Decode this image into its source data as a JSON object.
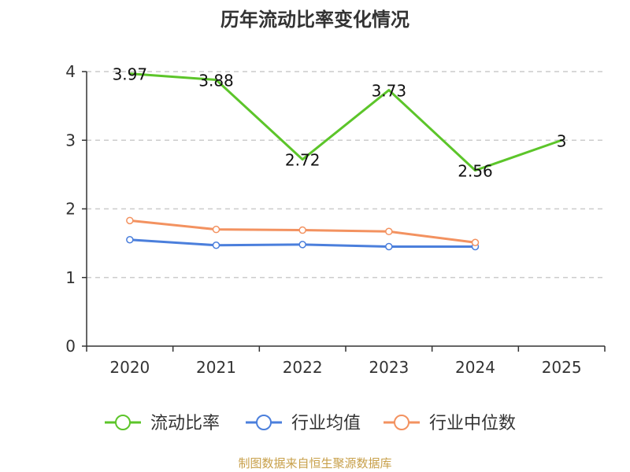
{
  "chart_data": {
    "type": "line",
    "title": "历年流动比率变化情况",
    "categories": [
      "2020",
      "2021",
      "2022",
      "2023",
      "2024",
      "2025"
    ],
    "ylim": [
      0,
      4
    ],
    "yticks": [
      0,
      1,
      2,
      3,
      4
    ],
    "grid": true,
    "legend_position": "bottom",
    "series": [
      {
        "name": "流动比率",
        "color": "#5cc52a",
        "values": [
          3.97,
          3.88,
          2.72,
          3.73,
          2.56,
          3
        ],
        "labels": [
          "3.97",
          "3.88",
          "2.72",
          "3.73",
          "2.56",
          "3"
        ],
        "markers": false,
        "show_labels": true
      },
      {
        "name": "行业均值",
        "color": "#4b7fdc",
        "values": [
          1.55,
          1.47,
          1.48,
          1.45,
          1.45,
          null
        ],
        "markers": true,
        "show_labels": false
      },
      {
        "name": "行业中位数",
        "color": "#f39260",
        "values": [
          1.83,
          1.7,
          1.69,
          1.67,
          1.51,
          null
        ],
        "markers": true,
        "show_labels": false
      }
    ]
  },
  "source": "制图数据来自恒生聚源数据库"
}
